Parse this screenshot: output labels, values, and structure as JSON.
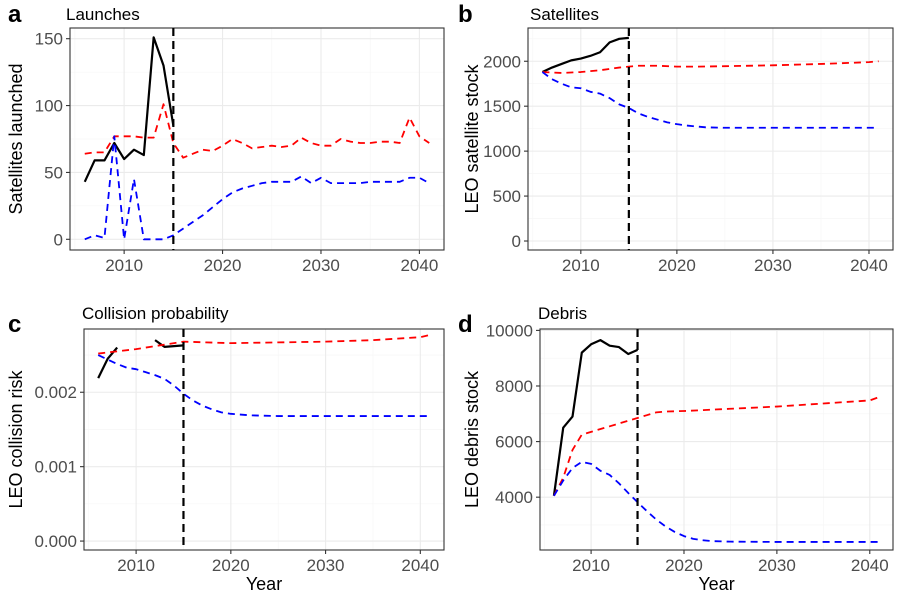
{
  "colors": {
    "observed": "#000000",
    "bau": "#ff0000",
    "ofr": "#0000ff",
    "grid_major": "#ebebeb",
    "grid_minor": "#f5f5f5",
    "panel_border": "#333333"
  },
  "chart_data": [
    {
      "type": "line",
      "panel_letter": "a",
      "title": "Launches",
      "xlabel": "",
      "ylabel": "Satellites launched",
      "xlim": [
        2004.5,
        2042.5
      ],
      "ylim": [
        -8,
        158
      ],
      "xticks": [
        2010,
        2020,
        2030,
        2040
      ],
      "yticks": [
        0,
        50,
        100,
        150
      ],
      "grid": true,
      "vline": 2015,
      "series": [
        {
          "style": "solid",
          "color": "observed",
          "x": [
            2006,
            2007,
            2008,
            2009,
            2010,
            2011,
            2012,
            2013,
            2014,
            2015
          ],
          "y": [
            43,
            59,
            59,
            72,
            60,
            67,
            63,
            151,
            130,
            85
          ]
        },
        {
          "style": "dashed",
          "color": "bau",
          "x": [
            2006,
            2007,
            2008,
            2009,
            2010,
            2011,
            2012,
            2013,
            2014,
            2015,
            2016,
            2017,
            2018,
            2019,
            2020,
            2021,
            2022,
            2023,
            2024,
            2025,
            2026,
            2027,
            2028,
            2029,
            2030,
            2031,
            2032,
            2033,
            2034,
            2035,
            2036,
            2037,
            2038,
            2039,
            2040,
            2041
          ],
          "y": [
            64,
            65,
            65,
            77,
            77,
            77,
            76,
            76,
            101,
            72,
            61,
            64,
            67,
            66,
            70,
            75,
            72,
            68,
            69,
            70,
            69,
            70,
            76,
            72,
            70,
            70,
            75,
            73,
            72,
            72,
            73,
            73,
            72,
            91,
            77,
            72
          ]
        },
        {
          "style": "dashed",
          "color": "ofr",
          "x": [
            2006,
            2007,
            2008,
            2009,
            2010,
            2011,
            2012,
            2013,
            2014,
            2015,
            2016,
            2017,
            2018,
            2019,
            2020,
            2021,
            2022,
            2023,
            2024,
            2025,
            2026,
            2027,
            2028,
            2029,
            2030,
            2031,
            2032,
            2033,
            2034,
            2035,
            2036,
            2037,
            2038,
            2039,
            2040,
            2041
          ],
          "y": [
            0,
            3,
            1,
            77,
            0,
            45,
            0,
            0,
            0,
            3,
            8,
            13,
            18,
            24,
            30,
            35,
            38,
            40,
            42,
            43,
            43,
            43,
            47,
            42,
            46,
            42,
            42,
            42,
            42,
            43,
            43,
            43,
            43,
            46,
            46,
            42
          ]
        }
      ]
    },
    {
      "type": "line",
      "panel_letter": "b",
      "title": "Satellites",
      "xlabel": "",
      "ylabel": "LEO satellite stock",
      "xlim": [
        2004.5,
        2042.5
      ],
      "ylim": [
        -100,
        2370
      ],
      "xticks": [
        2010,
        2020,
        2030,
        2040
      ],
      "yticks": [
        0,
        500,
        1000,
        1500,
        2000
      ],
      "grid": true,
      "vline": 2015,
      "series": [
        {
          "style": "solid",
          "color": "observed",
          "x": [
            2006,
            2007,
            2008,
            2009,
            2010,
            2011,
            2012,
            2013,
            2014,
            2015
          ],
          "y": [
            1880,
            1930,
            1970,
            2010,
            2030,
            2060,
            2100,
            2210,
            2250,
            2260
          ]
        },
        {
          "style": "dashed",
          "color": "bau",
          "x": [
            2006,
            2008,
            2010,
            2012,
            2014,
            2016,
            2018,
            2020,
            2022,
            2025,
            2030,
            2035,
            2040,
            2041
          ],
          "y": [
            1880,
            1870,
            1880,
            1900,
            1930,
            1950,
            1950,
            1940,
            1940,
            1945,
            1955,
            1970,
            1990,
            2000
          ]
        },
        {
          "style": "dashed",
          "color": "ofr",
          "x": [
            2006,
            2007,
            2008,
            2009,
            2010,
            2011,
            2012,
            2013,
            2014,
            2015,
            2016,
            2017,
            2018,
            2019,
            2020,
            2021,
            2022,
            2023,
            2025,
            2030,
            2035,
            2040,
            2041
          ],
          "y": [
            1880,
            1800,
            1750,
            1710,
            1700,
            1660,
            1640,
            1590,
            1520,
            1480,
            1420,
            1380,
            1350,
            1320,
            1300,
            1285,
            1275,
            1265,
            1260,
            1260,
            1260,
            1260,
            1260
          ]
        }
      ]
    },
    {
      "type": "line",
      "panel_letter": "c",
      "title": "Collision probability",
      "xlabel": "Year",
      "ylabel": "LEO collision risk",
      "xlim": [
        2004.5,
        2042.5
      ],
      "ylim": [
        -0.00012,
        0.00285
      ],
      "xticks": [
        2010,
        2020,
        2030,
        2040
      ],
      "yticks": [
        0.0,
        0.001,
        0.002
      ],
      "ytick_labels": [
        "0.000",
        "0.001",
        "0.002"
      ],
      "grid": true,
      "vline": 2015,
      "series": [
        {
          "style": "solid",
          "color": "observed",
          "x": [
            2006,
            2007,
            2008
          ],
          "y": [
            0.00219,
            0.00245,
            0.0026
          ]
        },
        {
          "style": "solid",
          "color": "observed",
          "x": [
            2012,
            2013,
            2014,
            2015
          ],
          "y": [
            0.0027,
            0.00261,
            0.00262,
            0.00263
          ]
        },
        {
          "style": "dashed",
          "color": "bau",
          "x": [
            2006,
            2010,
            2015,
            2020,
            2025,
            2030,
            2035,
            2040,
            2041
          ],
          "y": [
            0.00252,
            0.00258,
            0.00268,
            0.00266,
            0.00267,
            0.00268,
            0.0027,
            0.00274,
            0.00277
          ]
        },
        {
          "style": "dashed",
          "color": "ofr",
          "x": [
            2006,
            2007,
            2008,
            2009,
            2010,
            2011,
            2012,
            2013,
            2014,
            2015,
            2016,
            2017,
            2018,
            2019,
            2020,
            2021,
            2022,
            2025,
            2030,
            2035,
            2040,
            2041
          ],
          "y": [
            0.0025,
            0.00244,
            0.00238,
            0.00233,
            0.00231,
            0.00227,
            0.00223,
            0.00218,
            0.00209,
            0.00198,
            0.00189,
            0.00182,
            0.00177,
            0.00173,
            0.00171,
            0.0017,
            0.00169,
            0.00168,
            0.00168,
            0.00168,
            0.00168,
            0.00168
          ]
        }
      ]
    },
    {
      "type": "line",
      "panel_letter": "d",
      "title": "Debris",
      "xlabel": "Year",
      "ylabel": "LEO debris stock",
      "xlim": [
        2004.5,
        2042.5
      ],
      "ylim": [
        2100,
        10050
      ],
      "xticks": [
        2010,
        2020,
        2030,
        2040
      ],
      "yticks": [
        4000,
        6000,
        8000,
        10000
      ],
      "grid": true,
      "vline": 2015,
      "series": [
        {
          "style": "solid",
          "color": "observed",
          "x": [
            2006,
            2007,
            2008,
            2009,
            2010,
            2011,
            2012,
            2013,
            2014,
            2015
          ],
          "y": [
            4050,
            6500,
            6900,
            9200,
            9500,
            9650,
            9450,
            9400,
            9150,
            9300
          ]
        },
        {
          "style": "dashed",
          "color": "bau",
          "x": [
            2006,
            2007,
            2008,
            2009,
            2010,
            2012,
            2014,
            2015,
            2016,
            2017,
            2018,
            2020,
            2025,
            2030,
            2035,
            2040,
            2041
          ],
          "y": [
            4050,
            4700,
            5700,
            6250,
            6350,
            6550,
            6750,
            6850,
            6950,
            7050,
            7080,
            7100,
            7180,
            7260,
            7370,
            7480,
            7600
          ]
        },
        {
          "style": "dashed",
          "color": "ofr",
          "x": [
            2006,
            2007,
            2008,
            2009,
            2010,
            2011,
            2012,
            2013,
            2014,
            2015,
            2016,
            2017,
            2018,
            2019,
            2020,
            2021,
            2022,
            2023,
            2025,
            2030,
            2035,
            2040,
            2041
          ],
          "y": [
            4050,
            4600,
            5050,
            5270,
            5200,
            4950,
            4800,
            4500,
            4150,
            3820,
            3500,
            3200,
            2950,
            2750,
            2600,
            2500,
            2450,
            2420,
            2400,
            2390,
            2390,
            2390,
            2390
          ]
        }
      ]
    }
  ]
}
